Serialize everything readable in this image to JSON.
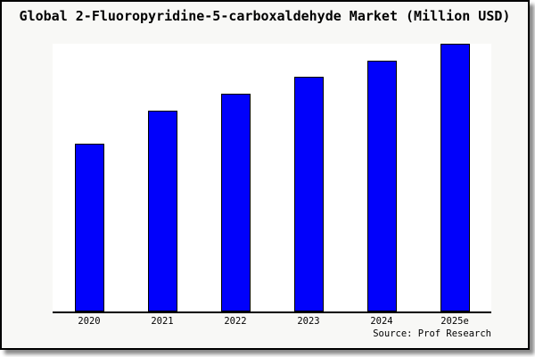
{
  "colors": {
    "bar_fill": "#0101fb",
    "bar_border": "#000000",
    "frame_background": "#f8f8f6",
    "plot_background": "#ffffff",
    "axis": "#000000",
    "border": "#000000"
  },
  "chart_data": {
    "type": "bar",
    "title": "Global 2-Fluoropyridine-5-carboxaldehyde Market (Million USD)",
    "categories": [
      "2020",
      "2021",
      "2022",
      "2023",
      "2024",
      "2025e"
    ],
    "values": [
      62.8,
      75.1,
      81.4,
      87.7,
      93.7,
      100
    ],
    "value_unit": "percent-of-tallest-bar",
    "ylim": [
      0,
      100
    ],
    "xlabel": "",
    "ylabel": "",
    "grid": false,
    "legend": false,
    "y_axis_ticks_visible": false,
    "source": "Source: Prof Research"
  }
}
